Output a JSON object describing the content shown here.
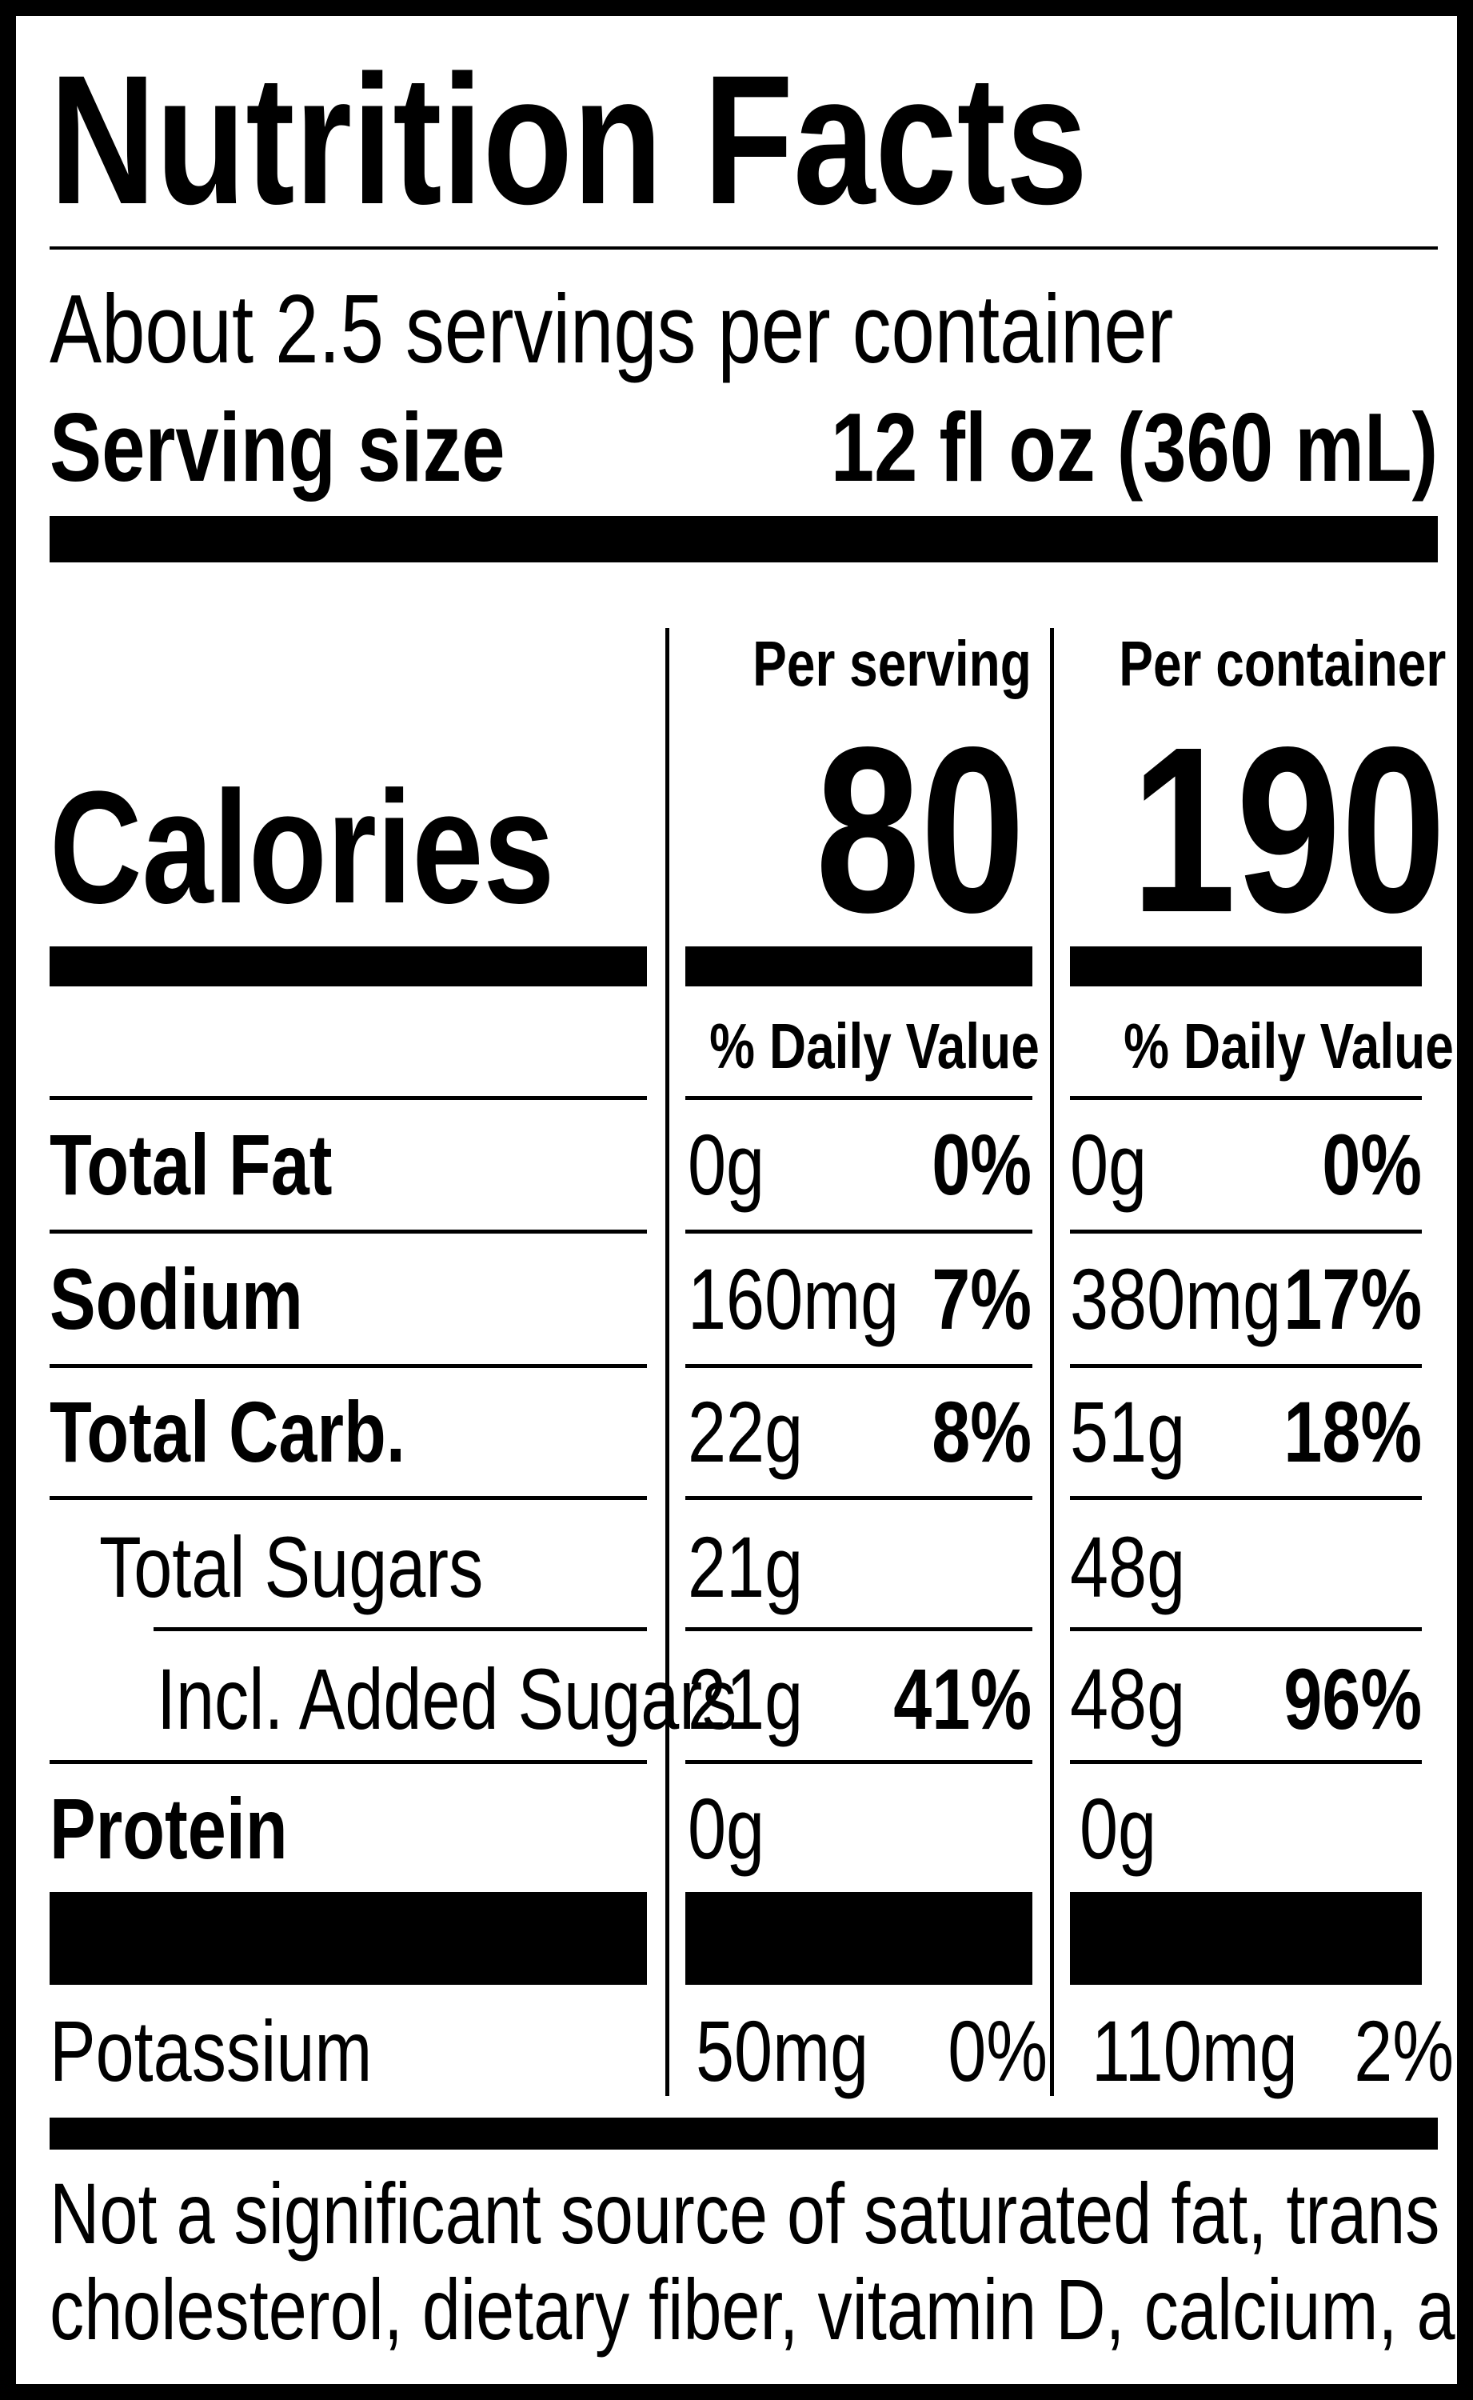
{
  "title": "Nutrition Facts",
  "servings_per_container": "About 2.5 servings per container",
  "serving_size": {
    "label": "Serving size",
    "value": "12 fl oz (360 mL)"
  },
  "columns": {
    "per_serving": {
      "header": "Per serving",
      "calories": "80",
      "dv_header": "% Daily Value"
    },
    "per_container": {
      "header": "Per container",
      "calories": "190",
      "dv_header": "% Daily Value"
    }
  },
  "calories_label": "Calories",
  "nutrients": [
    {
      "name": "Total Fat",
      "bold": true,
      "serving_amount": "0g",
      "serving_dv": "0%",
      "container_amount": "0g",
      "container_dv": "0%"
    },
    {
      "name": "Sodium",
      "bold": true,
      "serving_amount": "160mg",
      "serving_dv": "7%",
      "container_amount": "380mg",
      "container_dv": "17%"
    },
    {
      "name": "Total Carb.",
      "bold": true,
      "serving_amount": "22g",
      "serving_dv": "8%",
      "container_amount": "51g",
      "container_dv": "18%"
    },
    {
      "name": "Total Sugars",
      "bold": false,
      "serving_amount": "21g",
      "serving_dv": "",
      "container_amount": "48g",
      "container_dv": ""
    },
    {
      "name": "Incl. Added Sugars",
      "bold": false,
      "serving_amount": "21g",
      "serving_dv": "41%",
      "container_amount": "48g",
      "container_dv": "96%"
    },
    {
      "name": "Protein",
      "bold": true,
      "serving_amount": "0g",
      "serving_dv": "",
      "container_amount": "0g",
      "container_dv": ""
    }
  ],
  "potassium": {
    "name": "Potassium",
    "serving_amount": "50mg",
    "serving_dv": "0%",
    "container_amount": "110mg",
    "container_dv": "2%"
  },
  "footnote": {
    "line1": "Not a significant source of saturated fat, trans fat,",
    "line2": "cholesterol, dietary fiber, vitamin D, calcium, and iron."
  }
}
